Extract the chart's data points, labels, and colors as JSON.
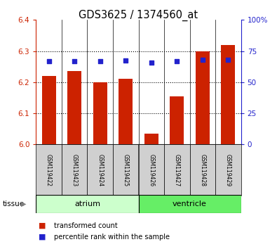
{
  "title": "GDS3625 / 1374560_at",
  "samples": [
    "GSM119422",
    "GSM119423",
    "GSM119424",
    "GSM119425",
    "GSM119426",
    "GSM119427",
    "GSM119428",
    "GSM119429"
  ],
  "transformed_count": [
    6.22,
    6.235,
    6.2,
    6.21,
    6.035,
    6.155,
    6.3,
    6.32
  ],
  "percentile_rank": [
    67,
    67,
    67,
    67.5,
    66,
    67,
    68,
    68
  ],
  "ylim_left": [
    6.0,
    6.4
  ],
  "ylim_right": [
    0,
    100
  ],
  "yticks_left": [
    6.0,
    6.1,
    6.2,
    6.3,
    6.4
  ],
  "yticks_right": [
    0,
    25,
    50,
    75,
    100
  ],
  "bar_color": "#cc2200",
  "dot_color": "#2222cc",
  "tissue_groups": [
    {
      "label": "atrium",
      "start": 0,
      "end": 3,
      "color": "#ccffcc"
    },
    {
      "label": "ventricle",
      "start": 4,
      "end": 7,
      "color": "#66ee66"
    }
  ],
  "tissue_label": "tissue",
  "legend_items": [
    {
      "label": "transformed count",
      "color": "#cc2200"
    },
    {
      "label": "percentile rank within the sample",
      "color": "#2222cc"
    }
  ],
  "bar_base": 6.0,
  "ylabel_left_color": "#cc2200",
  "ylabel_right_color": "#2222cc",
  "gray_box_color": "#d0d0d0"
}
